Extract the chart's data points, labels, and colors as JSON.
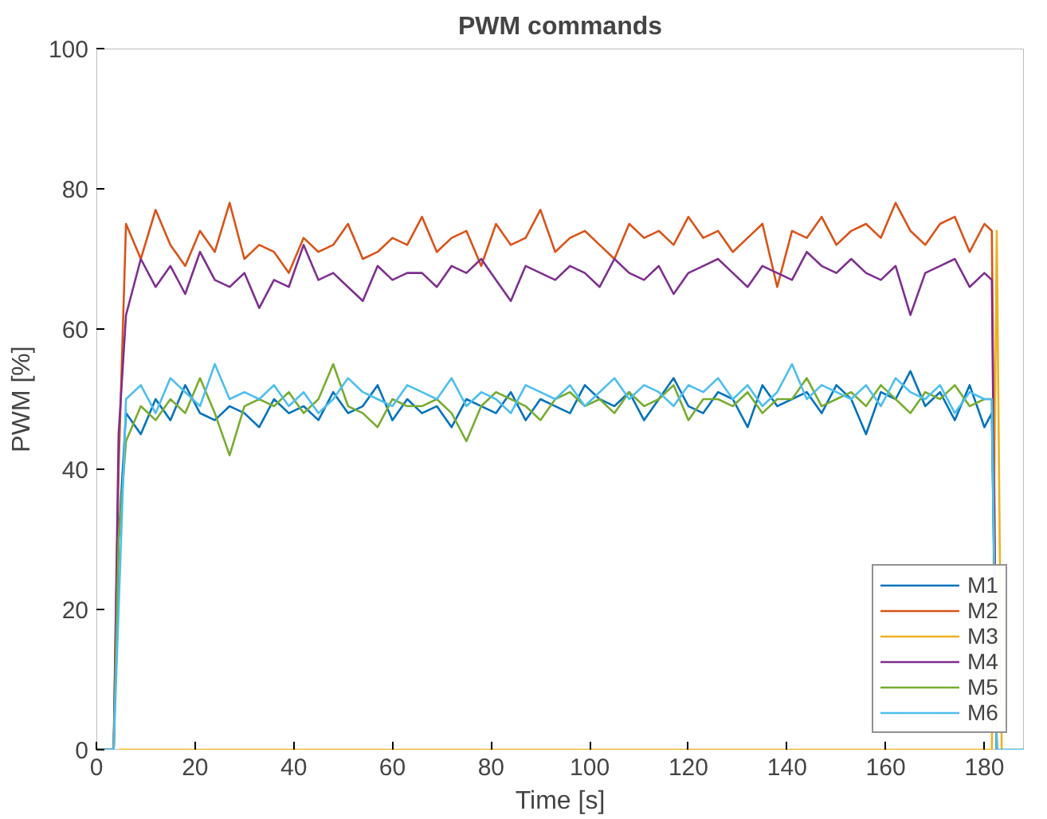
{
  "chart_data": {
    "type": "line",
    "title": "PWM commands",
    "xlabel": "Time [s]",
    "ylabel": "PWM [%]",
    "x": [
      0,
      3.5,
      4.5,
      6,
      9,
      12,
      15,
      18,
      21,
      24,
      27,
      30,
      33,
      36,
      39,
      42,
      45,
      48,
      51,
      54,
      57,
      60,
      63,
      66,
      69,
      72,
      75,
      78,
      81,
      84,
      87,
      90,
      93,
      96,
      99,
      102,
      105,
      108,
      111,
      114,
      117,
      120,
      123,
      126,
      129,
      132,
      135,
      138,
      141,
      144,
      147,
      150,
      153,
      156,
      159,
      162,
      165,
      168,
      171,
      174,
      177,
      180,
      181.5,
      182.5,
      183.5,
      188
    ],
    "series": [
      {
        "name": "M1",
        "color": "#0072bd",
        "values": [
          0,
          0,
          30,
          48,
          45,
          50,
          47,
          52,
          48,
          47,
          49,
          48,
          46,
          50,
          48,
          49,
          47,
          51,
          48,
          49,
          52,
          47,
          50,
          48,
          49,
          46,
          50,
          49,
          48,
          51,
          47,
          50,
          49,
          48,
          52,
          50,
          49,
          51,
          47,
          50,
          53,
          49,
          48,
          51,
          50,
          46,
          52,
          49,
          50,
          51,
          48,
          52,
          50,
          45,
          51,
          50,
          54,
          49,
          51,
          47,
          52,
          46,
          48,
          0,
          null,
          null
        ]
      },
      {
        "name": "M2",
        "color": "#d95319",
        "values": [
          0,
          0,
          40,
          75,
          70,
          77,
          72,
          69,
          74,
          71,
          78,
          70,
          72,
          71,
          68,
          73,
          71,
          72,
          75,
          70,
          71,
          73,
          72,
          76,
          71,
          73,
          74,
          69,
          75,
          72,
          73,
          77,
          71,
          73,
          74,
          72,
          70,
          75,
          73,
          74,
          72,
          76,
          73,
          74,
          71,
          73,
          75,
          66,
          74,
          73,
          76,
          72,
          74,
          75,
          73,
          78,
          74,
          72,
          75,
          76,
          71,
          75,
          74,
          0,
          null,
          null
        ]
      },
      {
        "name": "M3",
        "color": "#edb120",
        "values": [
          null,
          null,
          0,
          0,
          0,
          0,
          0,
          0,
          0,
          0,
          0,
          0,
          0,
          0,
          0,
          0,
          0,
          0,
          0,
          0,
          0,
          0,
          0,
          0,
          0,
          0,
          0,
          0,
          0,
          0,
          0,
          0,
          0,
          0,
          0,
          0,
          0,
          0,
          0,
          0,
          0,
          0,
          0,
          0,
          0,
          0,
          0,
          0,
          0,
          0,
          0,
          0,
          0,
          0,
          0,
          0,
          0,
          0,
          0,
          0,
          0,
          0,
          0,
          74,
          0,
          0
        ]
      },
      {
        "name": "M4",
        "color": "#7e2f8e",
        "values": [
          0,
          0,
          45,
          62,
          70,
          66,
          69,
          65,
          71,
          67,
          66,
          68,
          63,
          67,
          66,
          72,
          67,
          68,
          66,
          64,
          69,
          67,
          68,
          68,
          66,
          69,
          68,
          70,
          67,
          64,
          69,
          68,
          67,
          69,
          68,
          66,
          70,
          68,
          67,
          69,
          65,
          68,
          69,
          70,
          68,
          66,
          69,
          68,
          67,
          71,
          69,
          68,
          70,
          68,
          67,
          69,
          62,
          68,
          69,
          70,
          66,
          68,
          67,
          0,
          null,
          null
        ]
      },
      {
        "name": "M5",
        "color": "#77ac30",
        "values": [
          0,
          0,
          30,
          44,
          49,
          47,
          50,
          48,
          53,
          48,
          42,
          49,
          50,
          49,
          51,
          48,
          50,
          55,
          49,
          48,
          46,
          50,
          49,
          49,
          50,
          48,
          44,
          49,
          51,
          50,
          49,
          47,
          50,
          51,
          49,
          50,
          48,
          51,
          49,
          50,
          52,
          47,
          50,
          50,
          49,
          51,
          48,
          50,
          50,
          53,
          49,
          50,
          51,
          49,
          52,
          50,
          48,
          51,
          50,
          52,
          49,
          50,
          50,
          0,
          null,
          null
        ]
      },
      {
        "name": "M6",
        "color": "#4dbeee",
        "values": [
          0,
          0,
          20,
          50,
          52,
          48,
          53,
          51,
          49,
          55,
          50,
          51,
          50,
          52,
          49,
          51,
          48,
          50,
          53,
          51,
          50,
          49,
          52,
          51,
          50,
          53,
          49,
          51,
          50,
          48,
          52,
          51,
          50,
          52,
          49,
          51,
          53,
          50,
          52,
          51,
          49,
          52,
          51,
          53,
          50,
          52,
          49,
          51,
          55,
          50,
          52,
          51,
          50,
          52,
          49,
          53,
          51,
          50,
          52,
          48,
          51,
          50,
          50,
          0,
          0,
          0
        ]
      }
    ],
    "xlim": [
      0,
      188
    ],
    "ylim": [
      0,
      100
    ],
    "xticks": [
      0,
      20,
      40,
      60,
      80,
      100,
      120,
      140,
      160,
      180
    ],
    "yticks": [
      0,
      20,
      40,
      60,
      80,
      100
    ],
    "grid": false,
    "legend": "bottom right",
    "line_style": "solid",
    "marker": "none"
  }
}
